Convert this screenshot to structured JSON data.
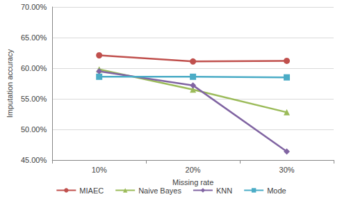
{
  "chart_data": {
    "type": "line",
    "x_label": "Missing rate",
    "y_label": "Imputation accuracy",
    "categories": [
      "10%",
      "20%",
      "30%"
    ],
    "series": [
      {
        "name": "MIAEC",
        "color": "#c0504d",
        "marker": "circle",
        "values": [
          62.1,
          61.1,
          61.2
        ]
      },
      {
        "name": "Naive Bayes",
        "color": "#9bbb59",
        "marker": "triangle",
        "values": [
          59.8,
          56.5,
          52.8
        ]
      },
      {
        "name": "KNN",
        "color": "#8064a2",
        "marker": "diamond",
        "values": [
          59.5,
          57.2,
          46.4
        ]
      },
      {
        "name": "Mode",
        "color": "#4bacc6",
        "marker": "square",
        "values": [
          58.6,
          58.6,
          58.5
        ]
      }
    ],
    "ylim": [
      45,
      70
    ],
    "yticks": [
      {
        "value": 45,
        "label": "45.00%"
      },
      {
        "value": 50,
        "label": "50.00%"
      },
      {
        "value": 55,
        "label": "55.00%"
      },
      {
        "value": 60,
        "label": "60.00%"
      },
      {
        "value": 65,
        "label": "65.00%"
      },
      {
        "value": 70,
        "label": "70.00%"
      }
    ],
    "grid": true,
    "legend": "bottom"
  }
}
